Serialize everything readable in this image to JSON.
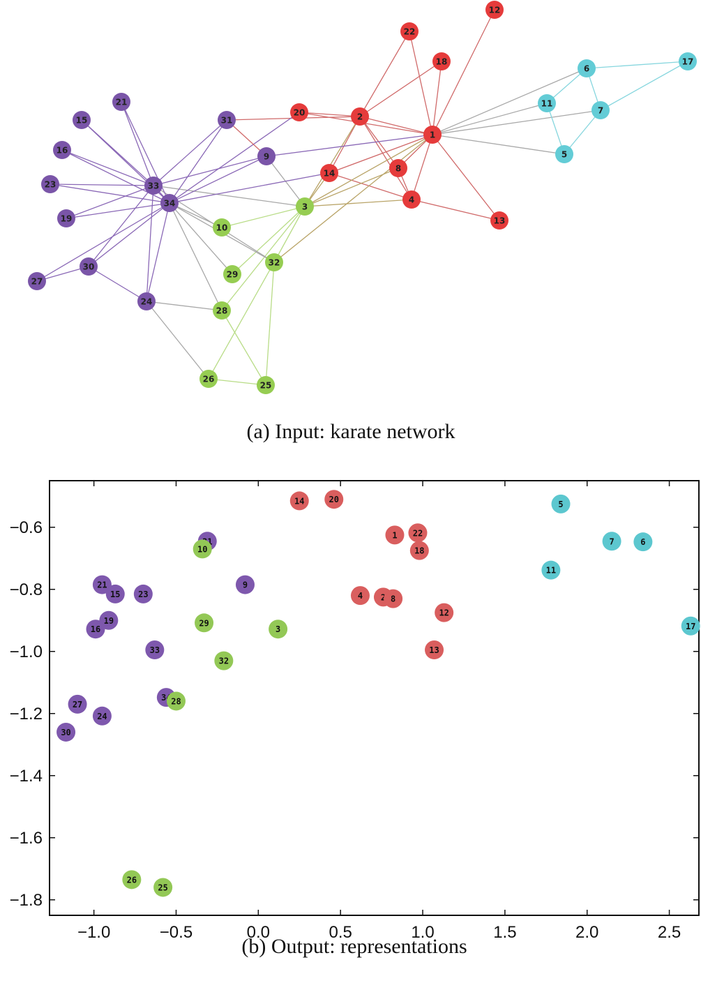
{
  "colors": {
    "red": "#e53b3b",
    "purple": "#7a55a8",
    "green": "#96cd52",
    "cyan": "#63ccd6",
    "gray_edge": "#a8a8a8",
    "red_edge": "#d06a6a",
    "purple_edge": "#8a68b6",
    "green_edge": "#b8dc86",
    "cyan_edge": "#86d6de",
    "olive_edge": "#b9a468",
    "red_pt": "#d95e5e",
    "purple_pt": "#7e58ad",
    "green_pt": "#93c856",
    "cyan_pt": "#5cc7cf"
  },
  "captions": {
    "a": "(a)  Input: karate network",
    "b": "(b)  Output: representations"
  },
  "network": {
    "nodes": [
      {
        "id": "1",
        "group": "red"
      },
      {
        "id": "2",
        "group": "red"
      },
      {
        "id": "4",
        "group": "red"
      },
      {
        "id": "8",
        "group": "red"
      },
      {
        "id": "12",
        "group": "red"
      },
      {
        "id": "13",
        "group": "red"
      },
      {
        "id": "14",
        "group": "red"
      },
      {
        "id": "18",
        "group": "red"
      },
      {
        "id": "20",
        "group": "red"
      },
      {
        "id": "22",
        "group": "red"
      },
      {
        "id": "5",
        "group": "cyan"
      },
      {
        "id": "6",
        "group": "cyan"
      },
      {
        "id": "7",
        "group": "cyan"
      },
      {
        "id": "11",
        "group": "cyan"
      },
      {
        "id": "17",
        "group": "cyan"
      },
      {
        "id": "3",
        "group": "green"
      },
      {
        "id": "10",
        "group": "green"
      },
      {
        "id": "25",
        "group": "green"
      },
      {
        "id": "26",
        "group": "green"
      },
      {
        "id": "28",
        "group": "green"
      },
      {
        "id": "29",
        "group": "green"
      },
      {
        "id": "32",
        "group": "green"
      },
      {
        "id": "9",
        "group": "purple"
      },
      {
        "id": "15",
        "group": "purple"
      },
      {
        "id": "16",
        "group": "purple"
      },
      {
        "id": "19",
        "group": "purple"
      },
      {
        "id": "21",
        "group": "purple"
      },
      {
        "id": "23",
        "group": "purple"
      },
      {
        "id": "24",
        "group": "purple"
      },
      {
        "id": "27",
        "group": "purple"
      },
      {
        "id": "30",
        "group": "purple"
      },
      {
        "id": "31",
        "group": "purple"
      },
      {
        "id": "33",
        "group": "purple"
      },
      {
        "id": "34",
        "group": "purple"
      }
    ],
    "edges": [
      [
        "1",
        "2",
        "red"
      ],
      [
        "1",
        "4",
        "red"
      ],
      [
        "1",
        "8",
        "red"
      ],
      [
        "1",
        "12",
        "red"
      ],
      [
        "1",
        "13",
        "red"
      ],
      [
        "1",
        "14",
        "red"
      ],
      [
        "1",
        "18",
        "red"
      ],
      [
        "1",
        "20",
        "red"
      ],
      [
        "1",
        "22",
        "red"
      ],
      [
        "2",
        "4",
        "red"
      ],
      [
        "2",
        "8",
        "red"
      ],
      [
        "2",
        "14",
        "red"
      ],
      [
        "2",
        "18",
        "red"
      ],
      [
        "2",
        "20",
        "red"
      ],
      [
        "2",
        "22",
        "red"
      ],
      [
        "4",
        "8",
        "red"
      ],
      [
        "4",
        "13",
        "red"
      ],
      [
        "4",
        "14",
        "red"
      ],
      [
        "1",
        "5",
        "gray"
      ],
      [
        "1",
        "6",
        "gray"
      ],
      [
        "1",
        "7",
        "gray"
      ],
      [
        "1",
        "11",
        "gray"
      ],
      [
        "6",
        "7",
        "cyan"
      ],
      [
        "6",
        "11",
        "cyan"
      ],
      [
        "6",
        "17",
        "cyan"
      ],
      [
        "7",
        "17",
        "cyan"
      ],
      [
        "7",
        "5",
        "cyan"
      ],
      [
        "5",
        "11",
        "cyan"
      ],
      [
        "1",
        "3",
        "olive"
      ],
      [
        "1",
        "32",
        "olive"
      ],
      [
        "2",
        "3",
        "olive"
      ],
      [
        "4",
        "3",
        "olive"
      ],
      [
        "8",
        "3",
        "olive"
      ],
      [
        "14",
        "3",
        "olive"
      ],
      [
        "2",
        "31",
        "red"
      ],
      [
        "3",
        "10",
        "green"
      ],
      [
        "3",
        "28",
        "green"
      ],
      [
        "3",
        "29",
        "green"
      ],
      [
        "32",
        "25",
        "green"
      ],
      [
        "32",
        "26",
        "green"
      ],
      [
        "26",
        "25",
        "green"
      ],
      [
        "28",
        "25",
        "green"
      ],
      [
        "3",
        "32",
        "green"
      ],
      [
        "3",
        "9",
        "gray"
      ],
      [
        "3",
        "33",
        "gray"
      ],
      [
        "34",
        "10",
        "gray"
      ],
      [
        "34",
        "28",
        "gray"
      ],
      [
        "34",
        "29",
        "gray"
      ],
      [
        "34",
        "32",
        "gray"
      ],
      [
        "33",
        "32",
        "gray"
      ],
      [
        "24",
        "28",
        "gray"
      ],
      [
        "24",
        "26",
        "gray"
      ],
      [
        "34",
        "14",
        "purple"
      ],
      [
        "34",
        "20",
        "purple"
      ],
      [
        "31",
        "9",
        "red"
      ],
      [
        "9",
        "1",
        "purple"
      ],
      [
        "33",
        "34",
        "purple"
      ],
      [
        "33",
        "15",
        "purple"
      ],
      [
        "33",
        "16",
        "purple"
      ],
      [
        "33",
        "19",
        "purple"
      ],
      [
        "33",
        "21",
        "purple"
      ],
      [
        "33",
        "23",
        "purple"
      ],
      [
        "33",
        "9",
        "purple"
      ],
      [
        "33",
        "31",
        "purple"
      ],
      [
        "33",
        "30",
        "purple"
      ],
      [
        "33",
        "24",
        "purple"
      ],
      [
        "34",
        "15",
        "purple"
      ],
      [
        "34",
        "16",
        "purple"
      ],
      [
        "34",
        "19",
        "purple"
      ],
      [
        "34",
        "21",
        "purple"
      ],
      [
        "34",
        "23",
        "purple"
      ],
      [
        "34",
        "9",
        "purple"
      ],
      [
        "34",
        "31",
        "purple"
      ],
      [
        "34",
        "30",
        "purple"
      ],
      [
        "34",
        "24",
        "purple"
      ],
      [
        "34",
        "27",
        "purple"
      ],
      [
        "30",
        "27",
        "purple"
      ],
      [
        "30",
        "24",
        "purple"
      ]
    ]
  },
  "chart_data": {
    "type": "scatter",
    "xlim": [
      -1.27,
      2.68
    ],
    "ylim": [
      -1.85,
      -0.45
    ],
    "xticks": [
      -1.0,
      -0.5,
      0.0,
      0.5,
      1.0,
      1.5,
      2.0,
      2.5
    ],
    "xtick_labels": [
      "−1.0",
      "−0.5",
      "0.0",
      "0.5",
      "1.0",
      "1.5",
      "2.0",
      "2.5"
    ],
    "yticks": [
      -0.6,
      -0.8,
      -1.0,
      -1.2,
      -1.4,
      -1.6,
      -1.8
    ],
    "ytick_labels": [
      "−0.6",
      "−0.8",
      "−1.0",
      "−1.2",
      "−1.4",
      "−1.6",
      "−1.8"
    ],
    "points": [
      {
        "label": "14",
        "x": 0.25,
        "y": -0.515,
        "group": "red"
      },
      {
        "label": "20",
        "x": 0.46,
        "y": -0.51,
        "group": "red"
      },
      {
        "label": "1",
        "x": 0.83,
        "y": -0.625,
        "group": "red"
      },
      {
        "label": "22",
        "x": 0.97,
        "y": -0.618,
        "group": "red"
      },
      {
        "label": "18",
        "x": 0.98,
        "y": -0.675,
        "group": "red"
      },
      {
        "label": "4",
        "x": 0.62,
        "y": -0.82,
        "group": "red"
      },
      {
        "label": "2",
        "x": 0.76,
        "y": -0.825,
        "group": "red"
      },
      {
        "label": "8",
        "x": 0.82,
        "y": -0.83,
        "group": "red"
      },
      {
        "label": "12",
        "x": 1.13,
        "y": -0.875,
        "group": "red"
      },
      {
        "label": "13",
        "x": 1.07,
        "y": -0.995,
        "group": "red"
      },
      {
        "label": "5",
        "x": 1.84,
        "y": -0.525,
        "group": "cyan"
      },
      {
        "label": "7",
        "x": 2.15,
        "y": -0.645,
        "group": "cyan"
      },
      {
        "label": "6",
        "x": 2.34,
        "y": -0.647,
        "group": "cyan"
      },
      {
        "label": "11",
        "x": 1.78,
        "y": -0.738,
        "group": "cyan"
      },
      {
        "label": "17",
        "x": 2.63,
        "y": -0.918,
        "group": "cyan"
      },
      {
        "label": "31",
        "x": -0.31,
        "y": -0.645,
        "group": "purple"
      },
      {
        "label": "10",
        "x": -0.34,
        "y": -0.67,
        "group": "green"
      },
      {
        "label": "9",
        "x": -0.08,
        "y": -0.785,
        "group": "purple"
      },
      {
        "label": "21",
        "x": -0.95,
        "y": -0.785,
        "group": "purple"
      },
      {
        "label": "15",
        "x": -0.87,
        "y": -0.815,
        "group": "purple"
      },
      {
        "label": "23",
        "x": -0.7,
        "y": -0.815,
        "group": "purple"
      },
      {
        "label": "19",
        "x": -0.91,
        "y": -0.9,
        "group": "purple"
      },
      {
        "label": "16",
        "x": -0.99,
        "y": -0.928,
        "group": "purple"
      },
      {
        "label": "29",
        "x": -0.33,
        "y": -0.908,
        "group": "green"
      },
      {
        "label": "3",
        "x": 0.12,
        "y": -0.928,
        "group": "green"
      },
      {
        "label": "33",
        "x": -0.63,
        "y": -0.995,
        "group": "purple"
      },
      {
        "label": "32",
        "x": -0.21,
        "y": -1.03,
        "group": "green"
      },
      {
        "label": "34",
        "x": -0.56,
        "y": -1.148,
        "group": "purple"
      },
      {
        "label": "28",
        "x": -0.5,
        "y": -1.16,
        "group": "green"
      },
      {
        "label": "27",
        "x": -1.1,
        "y": -1.17,
        "group": "purple"
      },
      {
        "label": "24",
        "x": -0.95,
        "y": -1.208,
        "group": "purple"
      },
      {
        "label": "30",
        "x": -1.17,
        "y": -1.26,
        "group": "purple"
      },
      {
        "label": "26",
        "x": -0.77,
        "y": -1.735,
        "group": "green"
      },
      {
        "label": "25",
        "x": -0.58,
        "y": -1.76,
        "group": "green"
      }
    ]
  }
}
